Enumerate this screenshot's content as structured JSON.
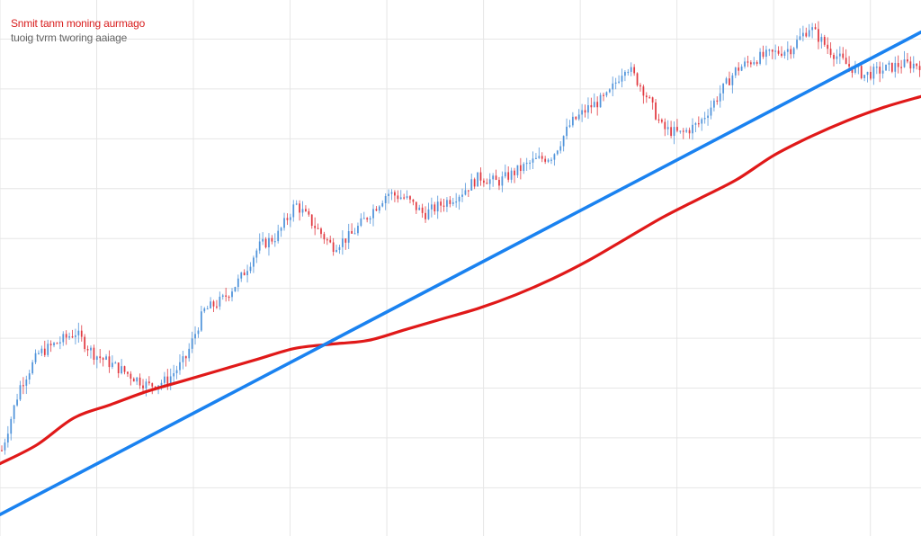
{
  "legend": {
    "short_label": "Snmit tanm moning aurmago",
    "long_label": "tuoig tvrm tworing aaiage"
  },
  "colors": {
    "background": "#ffffff",
    "grid": "#e6e6e6",
    "up_candle": "#4a90d9",
    "down_candle": "#e0323a",
    "short_ma": "#e01919",
    "long_ma": "#1a82f0",
    "legend_short": "#d81e1e",
    "legend_long": "#666666"
  },
  "chart_data": {
    "type": "line",
    "title": "",
    "xlabel": "",
    "ylabel": "",
    "xlim": [
      0,
      100
    ],
    "ylim": [
      0,
      100
    ],
    "grid": true,
    "grid_x": [
      0,
      10.5,
      21,
      31.5,
      42,
      52.5,
      63,
      73.5,
      84,
      94.5
    ],
    "grid_y": [
      9,
      18.3,
      27.6,
      36.9,
      46.2,
      55.5,
      64.8,
      74.1,
      83.4,
      92.7
    ],
    "series": [
      {
        "name": "Snmit tanm moning aurmago",
        "kind": "moving_average_short",
        "x": [
          0,
          4,
          8,
          12,
          16,
          20,
          24,
          28,
          32,
          36,
          40,
          44,
          48,
          52,
          56,
          60,
          64,
          68,
          72,
          76,
          80,
          84,
          88,
          92,
          96,
          100
        ],
        "y": [
          13.5,
          17,
          22,
          24.5,
          27,
          29,
          31,
          33,
          35,
          35.8,
          36.5,
          38.5,
          40.5,
          42.5,
          45,
          48,
          51.5,
          55.5,
          59.5,
          63,
          66.5,
          71,
          74.5,
          77.5,
          80,
          82
        ]
      },
      {
        "name": "tuoig tvrm tworing aaiage",
        "kind": "moving_average_long",
        "x": [
          0,
          100
        ],
        "y": [
          4,
          94
        ]
      },
      {
        "name": "price",
        "kind": "candlestick_close",
        "x": [
          0,
          2,
          4,
          6,
          8,
          10,
          12,
          14,
          16,
          18,
          20,
          22,
          24,
          26,
          28,
          30,
          32,
          34,
          36,
          38,
          40,
          42,
          44,
          46,
          48,
          50,
          52,
          54,
          56,
          58,
          60,
          62,
          64,
          66,
          68,
          70,
          72,
          74,
          76,
          78,
          80,
          82,
          84,
          86,
          88,
          90,
          92,
          94,
          96,
          98,
          100
        ],
        "y": [
          16,
          28,
          34,
          36,
          38,
          34,
          32,
          30,
          28,
          29,
          33,
          42,
          44,
          48,
          54,
          56,
          62,
          58,
          54,
          56,
          60,
          64,
          63,
          60,
          62,
          64,
          67,
          66,
          68,
          70,
          71,
          77,
          80,
          82,
          88,
          83,
          76,
          75,
          77,
          82,
          87,
          89,
          90,
          91,
          95,
          91,
          88,
          86,
          87,
          88,
          88
        ]
      }
    ]
  }
}
